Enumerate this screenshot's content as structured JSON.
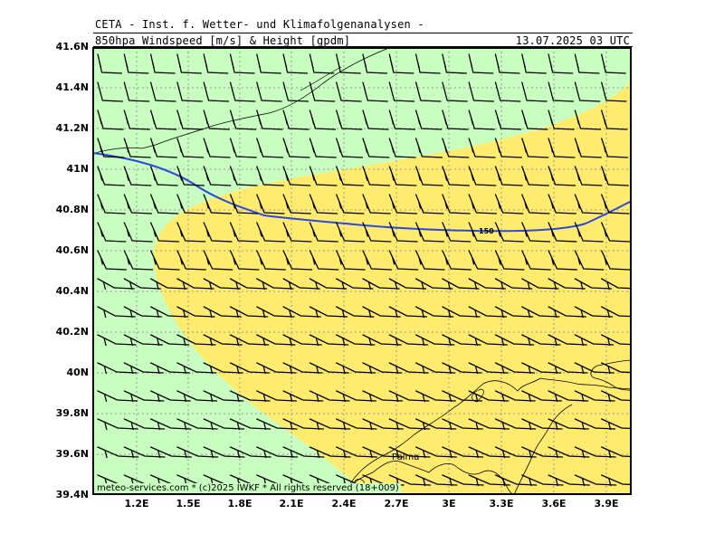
{
  "header": {
    "institute": "CETA - Inst. f. Wetter- und Klimafolgenanalysen -",
    "product": "850hpa Windspeed [m/s] & Height [gpdm]",
    "valid_time": "13.07.2025 03 UTC"
  },
  "axes": {
    "lat_labels": [
      "41.6N",
      "41.4N",
      "41.2N",
      "41N",
      "40.8N",
      "40.6N",
      "40.4N",
      "40.2N",
      "40N",
      "39.8N",
      "39.6N",
      "39.4N"
    ],
    "lon_labels": [
      "1.2E",
      "1.5E",
      "1.8E",
      "2.1E",
      "2.4E",
      "2.7E",
      "3E",
      "3.3E",
      "3.6E",
      "3.9E"
    ]
  },
  "map": {
    "region_extent": {
      "lon_min": 0.97,
      "lon_max": 4.07,
      "lat_min": 39.4,
      "lat_max": 41.6
    },
    "fill_colors": {
      "light_wind": "#c8ffc0",
      "moderate_wind": "#ffec6e"
    },
    "height_contour": {
      "value": "150",
      "color": "#2b49e0"
    },
    "place_label": "Palma",
    "wind_barbs": "shaft + 1 full + 1 half barb (~15 kt), direction from WSW-SW"
  },
  "footer": {
    "credit": "meteo-services.com * (c)2025 IWKF * All rights reserved (18+009)"
  }
}
